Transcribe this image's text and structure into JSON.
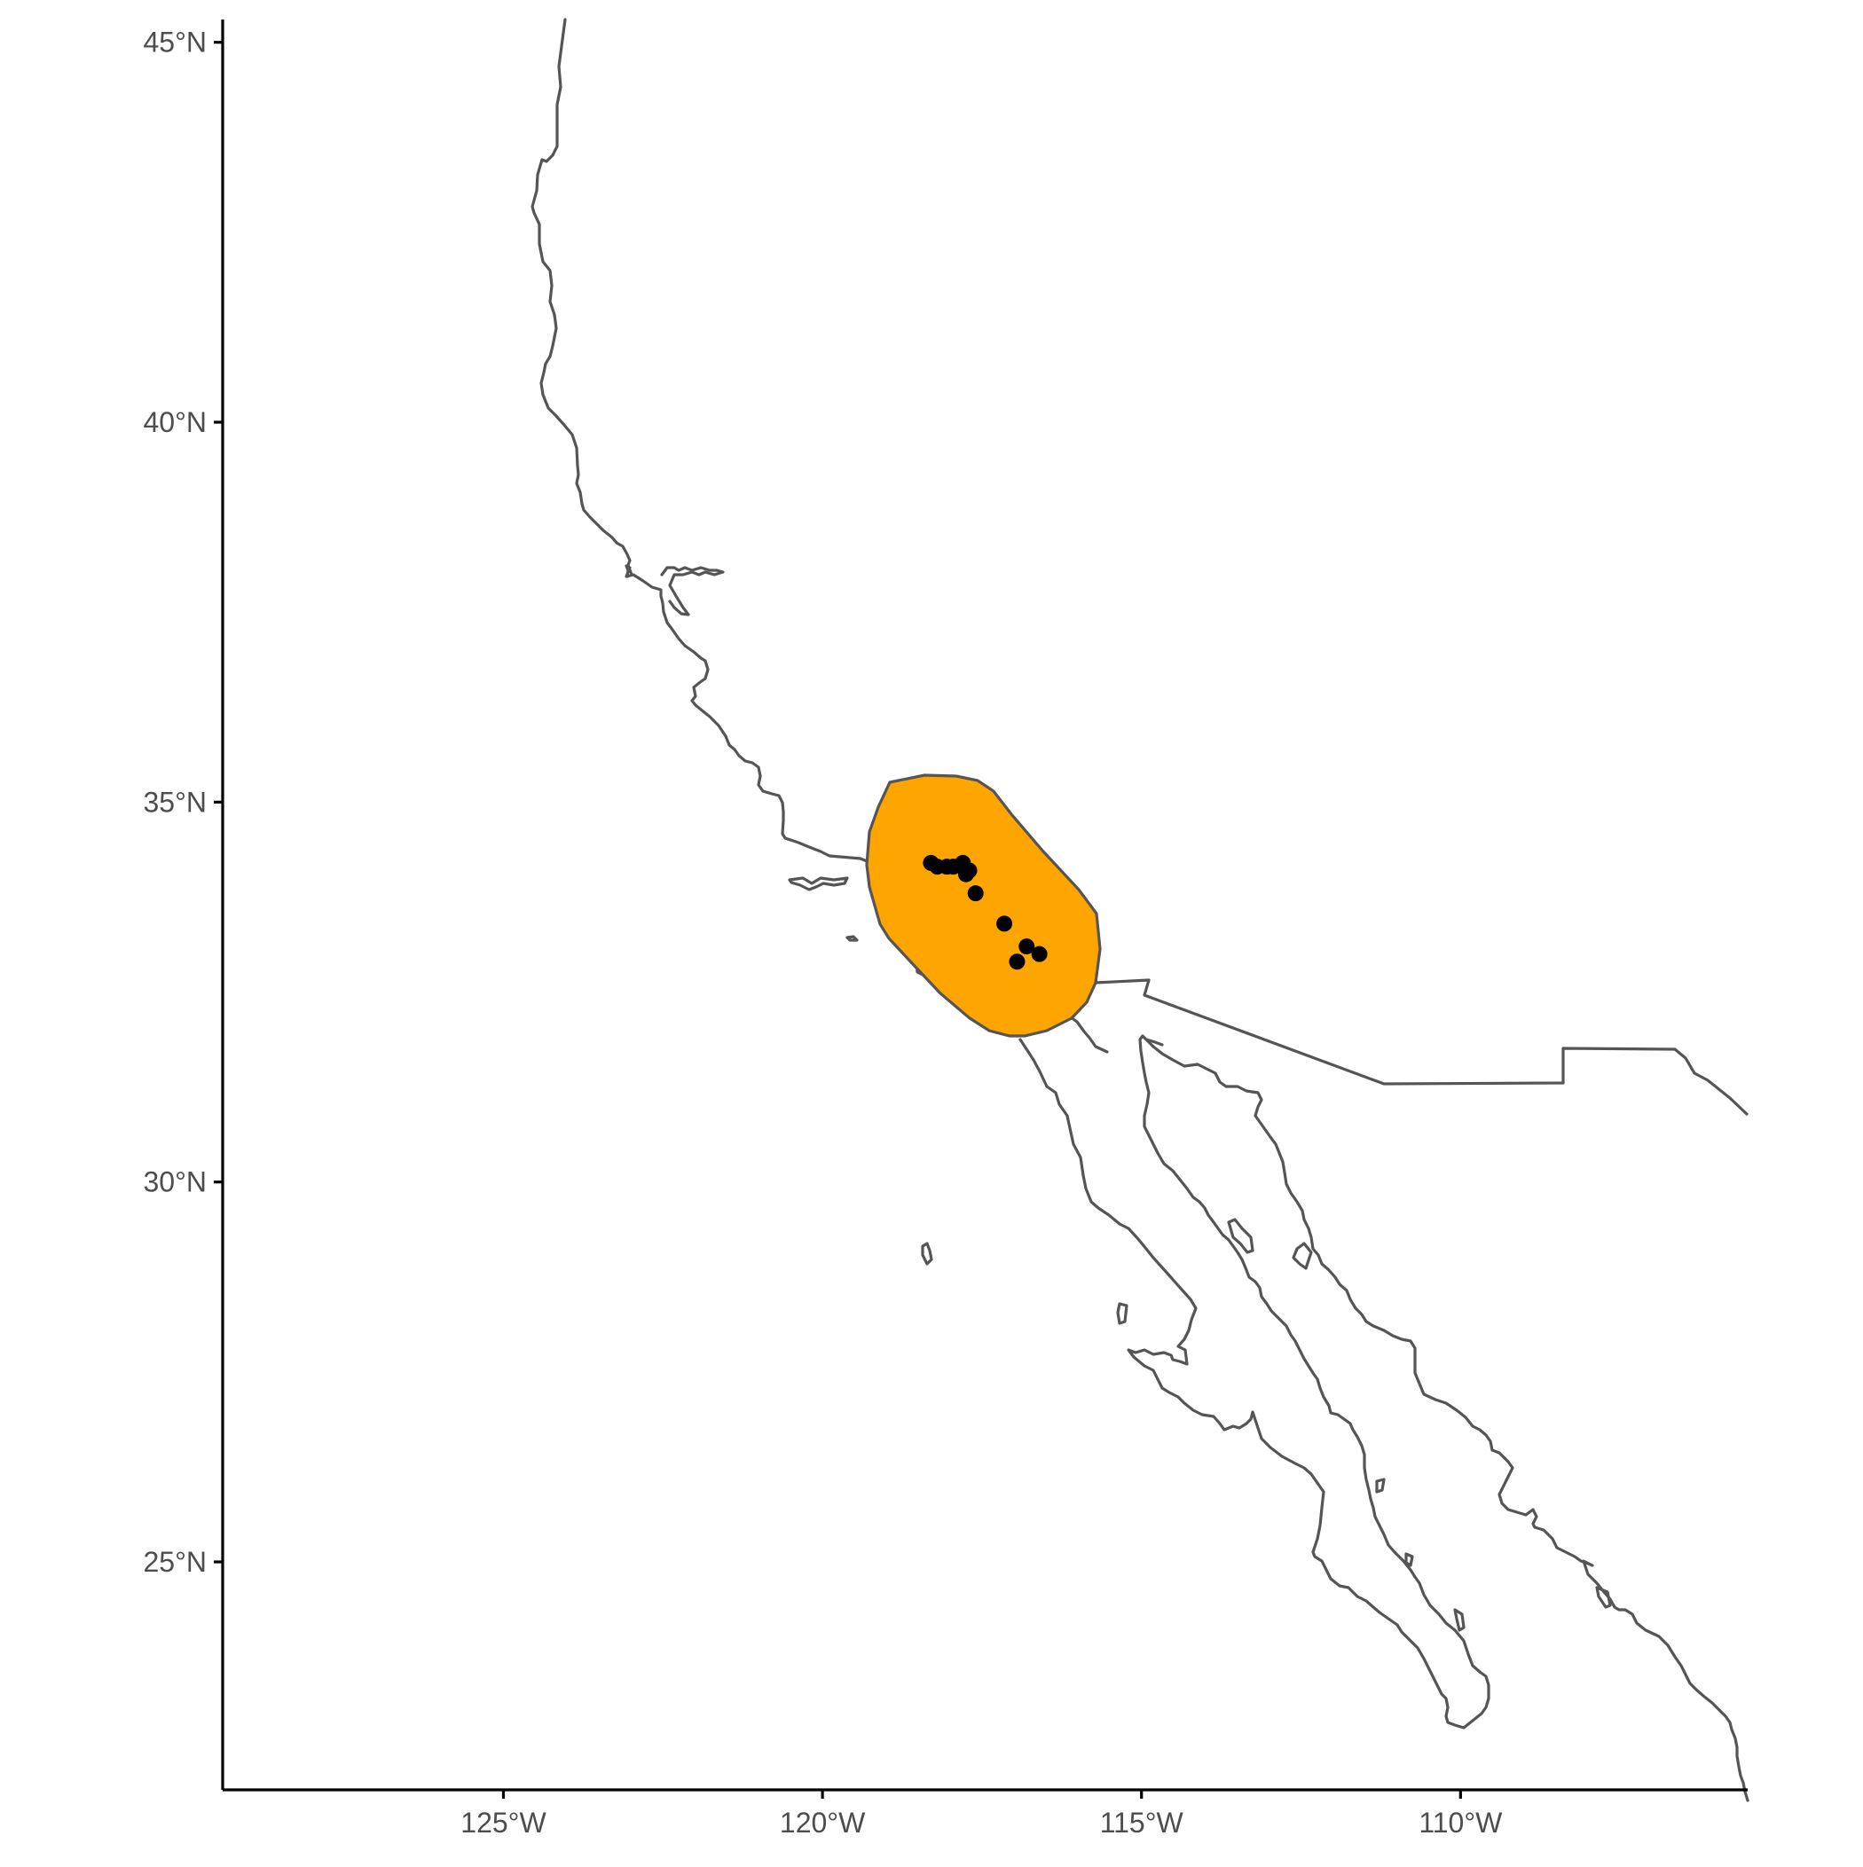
{
  "map": {
    "axes": {
      "y_ticks": [
        {
          "value": 45,
          "label": "45°N"
        },
        {
          "value": 40,
          "label": "40°N"
        },
        {
          "value": 35,
          "label": "35°N"
        },
        {
          "value": 30,
          "label": "30°N"
        },
        {
          "value": 25,
          "label": "25°N"
        }
      ],
      "x_ticks": [
        {
          "value": -125,
          "label": "125°W"
        },
        {
          "value": -120,
          "label": "120°W"
        },
        {
          "value": -115,
          "label": "115°W"
        },
        {
          "value": -110,
          "label": "110°W"
        }
      ],
      "xlim": [
        -129.4,
        -105.5
      ],
      "ylim": [
        22.0,
        45.3
      ]
    },
    "range_polygon": {
      "fill": "#FFA500",
      "stroke": "#555555"
    },
    "occurrences": {
      "color": "#000000",
      "points": [
        {
          "lon": -118.3,
          "lat": 34.2
        },
        {
          "lon": -118.2,
          "lat": 34.15
        },
        {
          "lon": -118.05,
          "lat": 34.15
        },
        {
          "lon": -117.95,
          "lat": 34.15
        },
        {
          "lon": -117.8,
          "lat": 34.2
        },
        {
          "lon": -117.7,
          "lat": 34.1
        },
        {
          "lon": -117.75,
          "lat": 34.05
        },
        {
          "lon": -117.6,
          "lat": 33.8
        },
        {
          "lon": -117.15,
          "lat": 33.4
        },
        {
          "lon": -116.8,
          "lat": 33.1
        },
        {
          "lon": -116.6,
          "lat": 33.0
        },
        {
          "lon": -116.95,
          "lat": 32.9
        }
      ]
    },
    "coastline_color": "#555555"
  }
}
